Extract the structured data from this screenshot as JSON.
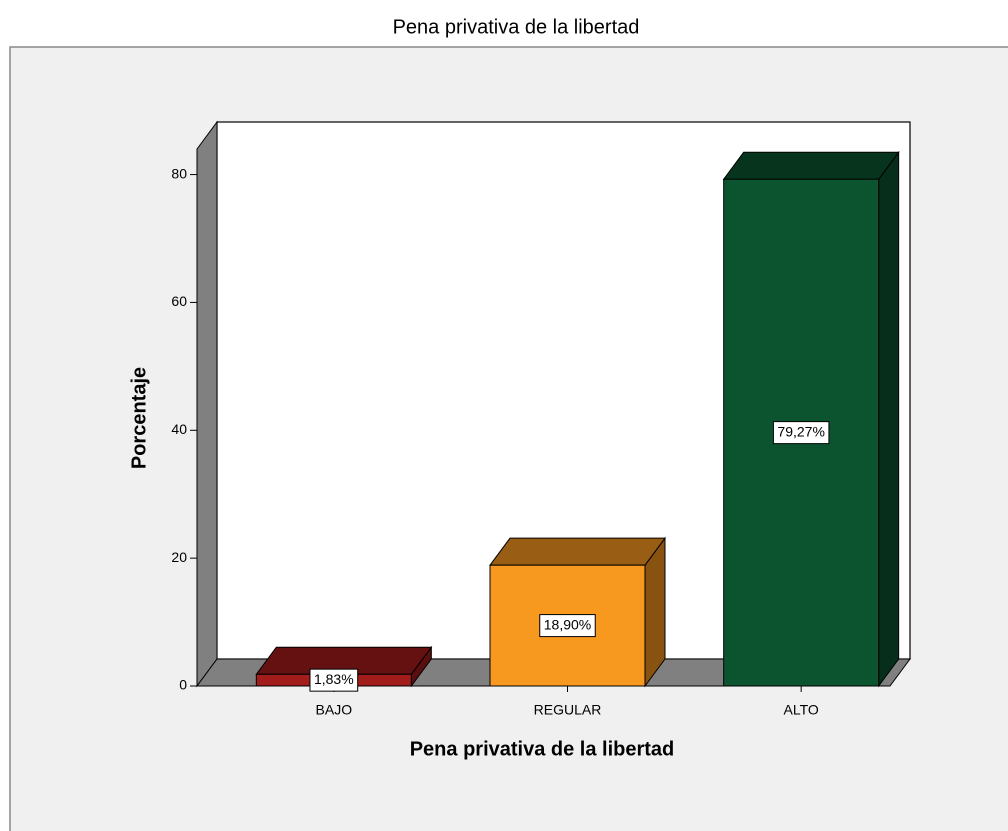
{
  "chart_data": {
    "type": "bar3d",
    "title": "Pena privativa de la libertad",
    "x_label": "Pena privativa de la libertad",
    "y_label": "Porcentaje",
    "categories": [
      "BAJO",
      "REGULAR",
      "ALTO"
    ],
    "values": [
      1.83,
      18.9,
      79.27
    ],
    "value_labels": [
      "1,83%",
      "18,90%",
      "79,27%"
    ],
    "colors": [
      "#a31c1c",
      "#f7981f",
      "#0c5430"
    ],
    "ylim": [
      0,
      84
    ],
    "yticks": [
      0,
      20,
      40,
      60,
      80
    ]
  }
}
